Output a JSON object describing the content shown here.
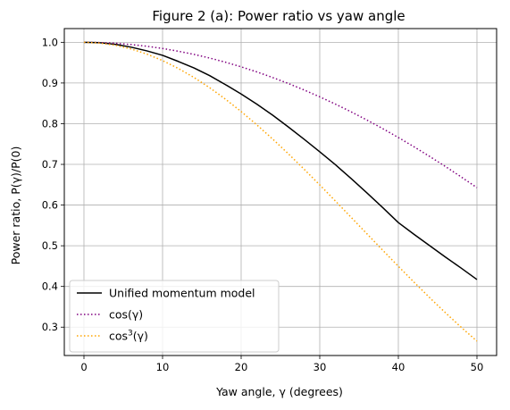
{
  "chart_data": {
    "type": "line",
    "title": "Figure 2 (a): Power ratio vs yaw angle",
    "xlabel": "Yaw angle, γ (degrees)",
    "ylabel": "Power ratio, P(γ)/P(0)",
    "xlim": [
      -2.5,
      52.5
    ],
    "ylim": [
      0.2303,
      1.0337
    ],
    "xticks": [
      0,
      10,
      20,
      30,
      40,
      50
    ],
    "yticks": [
      0.3,
      0.4,
      0.5,
      0.6,
      0.7,
      0.8,
      0.9,
      1.0
    ],
    "grid": true,
    "legend_position": "lower-left",
    "series": [
      {
        "name": "Unified momentum model",
        "style": "solid",
        "color": "#000000",
        "x": [
          0,
          2,
          4,
          6,
          8,
          10,
          12,
          14,
          16,
          18,
          20,
          22,
          24,
          26,
          28,
          30,
          32,
          34,
          36,
          38,
          40,
          42,
          44,
          46,
          48,
          50
        ],
        "y": [
          1.0,
          0.999,
          0.995,
          0.988,
          0.979,
          0.968,
          0.953,
          0.937,
          0.918,
          0.896,
          0.873,
          0.848,
          0.821,
          0.792,
          0.762,
          0.731,
          0.699,
          0.665,
          0.63,
          0.594,
          0.557,
          0.528,
          0.5,
          0.472,
          0.445,
          0.417
        ]
      },
      {
        "name": "cos(γ)",
        "style": "dotted",
        "color": "#800080",
        "x": [
          0,
          2,
          4,
          6,
          8,
          10,
          12,
          14,
          16,
          18,
          20,
          22,
          24,
          26,
          28,
          30,
          32,
          34,
          36,
          38,
          40,
          42,
          44,
          46,
          48,
          50
        ],
        "y": [
          1.0,
          0.9994,
          0.9976,
          0.9945,
          0.9903,
          0.9848,
          0.9781,
          0.9703,
          0.9613,
          0.9511,
          0.9397,
          0.9272,
          0.9135,
          0.8988,
          0.8829,
          0.866,
          0.848,
          0.829,
          0.809,
          0.788,
          0.766,
          0.7431,
          0.7193,
          0.6947,
          0.6691,
          0.6428
        ]
      },
      {
        "name": "cos³(γ)",
        "style": "dotted",
        "color": "#FFA500",
        "x": [
          0,
          2,
          4,
          6,
          8,
          10,
          12,
          14,
          16,
          18,
          20,
          22,
          24,
          26,
          28,
          30,
          32,
          34,
          36,
          38,
          40,
          42,
          44,
          46,
          48,
          50
        ],
        "y": [
          1.0,
          0.9982,
          0.9927,
          0.9836,
          0.9711,
          0.9551,
          0.9358,
          0.9135,
          0.8883,
          0.8603,
          0.8298,
          0.7971,
          0.7624,
          0.7261,
          0.6883,
          0.6495,
          0.6098,
          0.5697,
          0.5295,
          0.4893,
          0.4495,
          0.4104,
          0.3722,
          0.3352,
          0.2996,
          0.2656
        ]
      }
    ],
    "legend": [
      {
        "label": "Unified momentum model"
      },
      {
        "label": "cos(γ)"
      },
      {
        "label": "cos",
        "sup": "3",
        "suffix": "(γ)"
      }
    ]
  }
}
